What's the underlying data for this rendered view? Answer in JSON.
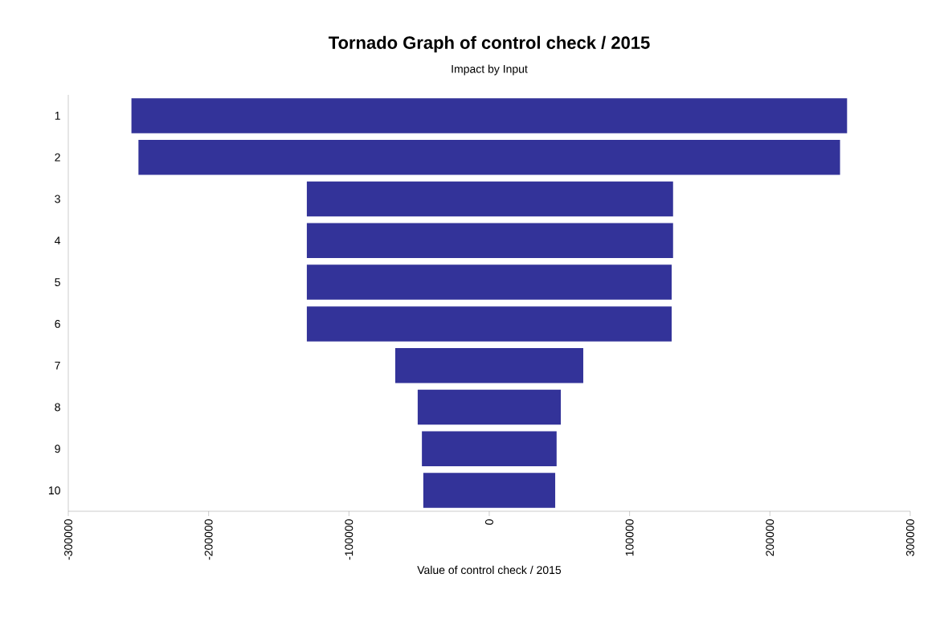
{
  "chart_data": {
    "type": "bar",
    "orientation": "horizontal",
    "title": "Tornado Graph of control check / 2015",
    "subtitle": "Impact by Input",
    "xlabel": "Value of control check / 2015",
    "categories": [
      "1",
      "2",
      "3",
      "4",
      "5",
      "6",
      "7",
      "8",
      "9",
      "10"
    ],
    "base": [
      -255000,
      -250000,
      -130000,
      -130000,
      -130000,
      -130000,
      -67000,
      -51000,
      -48000,
      -47000
    ],
    "values": [
      510000,
      500000,
      261000,
      261000,
      260000,
      260000,
      134000,
      102000,
      96000,
      94000
    ],
    "color": "#333399",
    "xlim": [
      -300000,
      300000
    ],
    "xticks": [
      -300000,
      -200000,
      -100000,
      0,
      100000,
      200000,
      300000
    ],
    "grid": false
  }
}
